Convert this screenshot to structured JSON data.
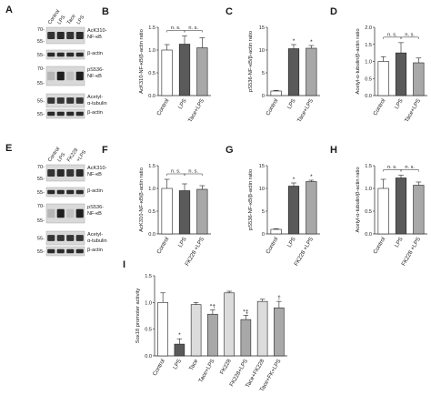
{
  "blots": [
    {
      "panel": "A",
      "lanes": [
        "Control",
        "LPS",
        "Tace",
        "LPS"
      ],
      "rows": [
        {
          "label": [
            "AcK310-",
            "NF-κB"
          ],
          "mw": [
            "70-",
            "55-"
          ],
          "intensity": [
            0.85,
            0.9,
            0.85,
            0.9
          ]
        },
        {
          "label": [
            "β-actin"
          ],
          "mw": [
            "55-"
          ],
          "intensity": [
            0.9,
            0.9,
            0.9,
            0.9
          ]
        },
        {
          "label": [
            "pS536-",
            "NF-κB"
          ],
          "mw": [
            "70-",
            "55-"
          ],
          "intensity": [
            0.25,
            0.95,
            0.2,
            0.95
          ]
        },
        {
          "label": [
            "Acetyl-",
            "α-tubulin"
          ],
          "mw": [
            "55-"
          ],
          "intensity": [
            0.85,
            0.85,
            0.85,
            0.85
          ]
        },
        {
          "label": [
            "β-actin"
          ],
          "mw": [
            "55-"
          ],
          "intensity": [
            0.9,
            0.9,
            0.9,
            0.9
          ]
        }
      ]
    },
    {
      "panel": "E",
      "lanes": [
        "Control",
        "LPS",
        "FK228",
        "+LPS"
      ],
      "rows": [
        {
          "label": [
            "AcK310-",
            "NF-κB"
          ],
          "mw": [
            "70-",
            "55-"
          ],
          "intensity": [
            0.85,
            0.9,
            0.85,
            0.9
          ]
        },
        {
          "label": [
            "β-actin"
          ],
          "mw": [
            "55-"
          ],
          "intensity": [
            0.9,
            0.9,
            0.9,
            0.9
          ]
        },
        {
          "label": [
            "pS536-",
            "NF-κB"
          ],
          "mw": [
            "70-",
            "55-"
          ],
          "intensity": [
            0.25,
            0.95,
            0.2,
            0.95
          ]
        },
        {
          "label": [
            "Acetyl-",
            "α-tubulin"
          ],
          "mw": [
            "55-"
          ],
          "intensity": [
            0.85,
            0.85,
            0.85,
            0.85
          ]
        },
        {
          "label": [
            "β-actin"
          ],
          "mw": [
            "55-"
          ],
          "intensity": [
            0.9,
            0.9,
            0.9,
            0.9
          ]
        }
      ]
    }
  ],
  "chart_data": [
    {
      "panel": "B",
      "type": "bar",
      "ylabel": "AcK310-NF-κB/β-actin ratio",
      "ylim": [
        0,
        1.5
      ],
      "yticks": [
        "0.0",
        "0.5",
        "1.0",
        "1.5"
      ],
      "categories": [
        "Control",
        "LPS",
        "Tace+LPS"
      ],
      "values": [
        1.0,
        1.13,
        1.05
      ],
      "errors": [
        0.12,
        0.18,
        0.22
      ],
      "colors": [
        "#ffffff",
        "#5a5a5a",
        "#a8a8a8"
      ],
      "marks": [
        "",
        "",
        ""
      ],
      "brackets": [
        {
          "from": 0,
          "to": 1,
          "text": "n. s."
        },
        {
          "from": 1,
          "to": 2,
          "text": "n. s."
        }
      ]
    },
    {
      "panel": "C",
      "type": "bar",
      "ylabel": "pS536-NF-κB/β-actin ratio",
      "ylim": [
        0,
        15
      ],
      "yticks": [
        "0",
        "5",
        "10",
        "15"
      ],
      "categories": [
        "Control",
        "LPS",
        "Tace+LPS"
      ],
      "values": [
        1.0,
        10.3,
        10.4
      ],
      "errors": [
        0.15,
        0.9,
        0.6
      ],
      "colors": [
        "#ffffff",
        "#5a5a5a",
        "#a8a8a8"
      ],
      "marks": [
        "",
        "*",
        "*"
      ],
      "brackets": []
    },
    {
      "panel": "D",
      "type": "bar",
      "ylabel": "Acetyl-α-tubulin/β-actin ratio",
      "ylim": [
        0,
        2.0
      ],
      "yticks": [
        "0.0",
        "0.5",
        "1.0",
        "1.5",
        "2.0"
      ],
      "categories": [
        "Control",
        "LPS",
        "Tace+LPS"
      ],
      "values": [
        1.0,
        1.25,
        0.96
      ],
      "errors": [
        0.14,
        0.3,
        0.14
      ],
      "colors": [
        "#ffffff",
        "#5a5a5a",
        "#a8a8a8"
      ],
      "marks": [
        "",
        "",
        ""
      ],
      "brackets": [
        {
          "from": 0,
          "to": 1,
          "text": "n. s."
        },
        {
          "from": 1,
          "to": 2,
          "text": "n. s."
        }
      ]
    },
    {
      "panel": "F",
      "type": "bar",
      "ylabel": "AcK310-NF-κB/β-actin ratio",
      "ylim": [
        0,
        1.5
      ],
      "yticks": [
        "0.0",
        "0.5",
        "1.0",
        "1.5"
      ],
      "categories": [
        "Control",
        "LPS",
        "FK228 +LPS"
      ],
      "values": [
        1.0,
        0.95,
        0.98
      ],
      "errors": [
        0.2,
        0.15,
        0.08
      ],
      "colors": [
        "#ffffff",
        "#5a5a5a",
        "#a8a8a8"
      ],
      "marks": [
        "",
        "",
        ""
      ],
      "brackets": [
        {
          "from": 0,
          "to": 1,
          "text": "n. s."
        },
        {
          "from": 1,
          "to": 2,
          "text": "n. s."
        }
      ]
    },
    {
      "panel": "G",
      "type": "bar",
      "ylabel": "pS536-NF-κB/β-actin ratio",
      "ylim": [
        0,
        15
      ],
      "yticks": [
        "0",
        "5",
        "10",
        "15"
      ],
      "categories": [
        "Control",
        "LPS",
        "FK228 +LPS"
      ],
      "values": [
        1.0,
        10.5,
        11.5
      ],
      "errors": [
        0.15,
        0.7,
        0.3
      ],
      "colors": [
        "#ffffff",
        "#5a5a5a",
        "#a8a8a8"
      ],
      "marks": [
        "",
        "*",
        "*"
      ],
      "brackets": []
    },
    {
      "panel": "H",
      "type": "bar",
      "ylabel": "Acetyl-α-tubulin/β-actin ratio",
      "ylim": [
        0,
        1.5
      ],
      "yticks": [
        "0.0",
        "0.5",
        "1.0",
        "1.5"
      ],
      "categories": [
        "Control",
        "LPS",
        "FK228 +LPS"
      ],
      "values": [
        1.0,
        1.23,
        1.07
      ],
      "errors": [
        0.2,
        0.06,
        0.07
      ],
      "colors": [
        "#ffffff",
        "#5a5a5a",
        "#a8a8a8"
      ],
      "marks": [
        "",
        "",
        ""
      ],
      "brackets": [
        {
          "from": 0,
          "to": 1,
          "text": "n. s."
        },
        {
          "from": 1,
          "to": 2,
          "text": "n. s."
        }
      ]
    },
    {
      "panel": "I",
      "type": "bar",
      "ylabel": "Sox18 promoter activity",
      "ylim": [
        0,
        1.5
      ],
      "yticks": [
        "0.0",
        "0.5",
        "1.0",
        "1.5"
      ],
      "categories": [
        "Control",
        "LPS",
        "Tace",
        "Tace+LPS",
        "FK228",
        "FK228+LPS",
        "Tace+FK228",
        "Tace+FK+LPS"
      ],
      "values": [
        1.0,
        0.22,
        0.96,
        0.78,
        1.18,
        0.68,
        1.02,
        0.9
      ],
      "errors": [
        0.18,
        0.1,
        0.04,
        0.08,
        0.03,
        0.08,
        0.04,
        0.12
      ],
      "colors": [
        "#ffffff",
        "#5a5a5a",
        "#dcdcdc",
        "#a8a8a8",
        "#dcdcdc",
        "#a8a8a8",
        "#dcdcdc",
        "#a8a8a8"
      ],
      "marks": [
        "",
        "*",
        "",
        "*†",
        "",
        "*‡",
        "",
        "†"
      ],
      "brackets": []
    }
  ]
}
